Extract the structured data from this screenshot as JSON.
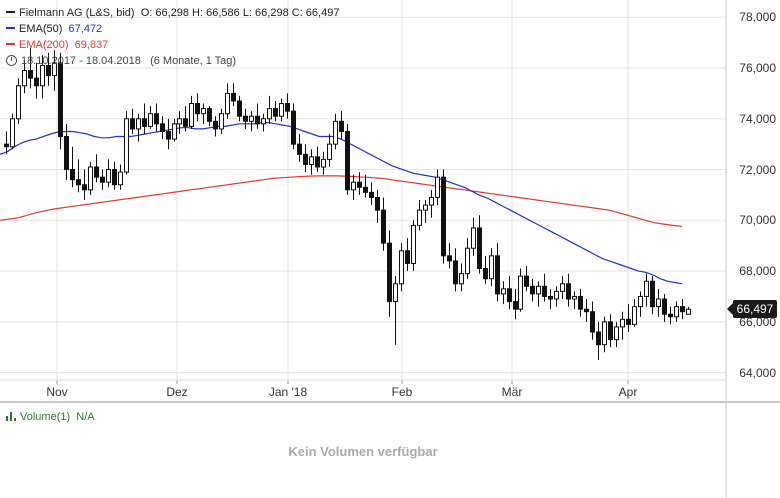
{
  "legend": {
    "title": "Fielmann AG (L&S, bid)",
    "ohlc": "O: 66,298  H: 66,586  L: 66,298  C: 66,497",
    "ema50_label": "EMA(50)",
    "ema50_value": "67,472",
    "ema200_label": "EMA(200)",
    "ema200_value": "69,837",
    "range": "18.10.2017 - 18.04.2018",
    "period": "(6 Monate, 1 Tag)"
  },
  "last_price_label": "66,497",
  "volume": {
    "label": "Volume(1)",
    "value": "N/A",
    "empty_message": "Kein Volumen verfügbar"
  },
  "colors": {
    "ema50": "#2233cc",
    "ema200": "#e23b2e",
    "candle": "#111111",
    "grid": "#e3e3e3",
    "volume": "#2a7a2a"
  },
  "chart_data": {
    "type": "candlestick",
    "y_ticks": [
      "64,000",
      "66,000",
      "68,000",
      "70,000",
      "72,000",
      "74,000",
      "76,000",
      "78,000"
    ],
    "y_tick_values": [
      64,
      66,
      68,
      70,
      72,
      74,
      76,
      78
    ],
    "x_ticks": [
      "Nov",
      "Dez",
      "Jan '18",
      "Feb",
      "Mär",
      "Apr"
    ],
    "ylim": [
      63.0,
      78.6
    ],
    "grid": true,
    "candles_ohlc": [
      [
        73.0,
        73.5,
        72.6,
        72.9
      ],
      [
        72.9,
        74.2,
        72.8,
        74.0
      ],
      [
        74.0,
        75.6,
        73.8,
        75.3
      ],
      [
        75.3,
        76.3,
        75.0,
        75.9
      ],
      [
        75.9,
        76.8,
        75.2,
        75.6
      ],
      [
        75.6,
        76.2,
        74.8,
        75.3
      ],
      [
        75.3,
        76.5,
        74.8,
        76.1
      ],
      [
        76.1,
        76.6,
        75.3,
        75.7
      ],
      [
        75.7,
        76.7,
        75.1,
        76.2
      ],
      [
        76.2,
        76.6,
        72.8,
        73.3
      ],
      [
        73.3,
        73.8,
        71.6,
        72.0
      ],
      [
        72.0,
        72.9,
        71.3,
        71.6
      ],
      [
        71.6,
        72.4,
        71.1,
        71.4
      ],
      [
        71.4,
        72.0,
        70.8,
        71.2
      ],
      [
        71.2,
        72.3,
        71.0,
        72.1
      ],
      [
        72.1,
        72.6,
        71.5,
        71.7
      ],
      [
        71.7,
        72.0,
        71.2,
        71.5
      ],
      [
        71.5,
        72.4,
        71.3,
        72.0
      ],
      [
        72.0,
        72.3,
        71.2,
        71.4
      ],
      [
        71.4,
        72.2,
        71.2,
        71.9
      ],
      [
        71.9,
        74.3,
        71.8,
        74.0
      ],
      [
        74.0,
        74.4,
        73.4,
        73.6
      ],
      [
        73.6,
        74.2,
        73.1,
        74.0
      ],
      [
        74.0,
        74.6,
        73.4,
        73.7
      ],
      [
        73.7,
        74.5,
        73.6,
        74.2
      ],
      [
        74.2,
        74.6,
        73.5,
        73.8
      ],
      [
        73.8,
        74.1,
        73.2,
        73.5
      ],
      [
        73.5,
        74.0,
        72.8,
        73.2
      ],
      [
        73.2,
        74.0,
        73.1,
        73.8
      ],
      [
        73.8,
        74.3,
        73.4,
        74.0
      ],
      [
        74.0,
        74.5,
        73.5,
        73.7
      ],
      [
        73.7,
        74.9,
        73.6,
        74.6
      ],
      [
        74.6,
        75.0,
        73.9,
        74.2
      ],
      [
        74.2,
        74.6,
        73.8,
        74.4
      ],
      [
        74.4,
        74.5,
        73.7,
        73.9
      ],
      [
        73.9,
        74.1,
        73.3,
        73.6
      ],
      [
        73.6,
        74.4,
        73.4,
        74.2
      ],
      [
        74.2,
        75.4,
        74.0,
        75.0
      ],
      [
        75.0,
        75.4,
        74.5,
        74.7
      ],
      [
        74.7,
        74.9,
        73.9,
        74.1
      ],
      [
        74.1,
        74.4,
        73.6,
        73.9
      ],
      [
        73.9,
        74.3,
        73.5,
        74.1
      ],
      [
        74.1,
        74.6,
        73.6,
        73.8
      ],
      [
        73.8,
        74.2,
        73.5,
        74.0
      ],
      [
        74.0,
        74.9,
        73.8,
        74.4
      ],
      [
        74.4,
        74.7,
        73.9,
        74.1
      ],
      [
        74.1,
        74.8,
        73.9,
        74.6
      ],
      [
        74.6,
        75.0,
        74.0,
        74.3
      ],
      [
        74.3,
        74.6,
        72.8,
        73.0
      ],
      [
        73.0,
        73.4,
        72.3,
        72.6
      ],
      [
        72.6,
        73.0,
        71.9,
        72.2
      ],
      [
        72.2,
        72.8,
        71.8,
        72.5
      ],
      [
        72.5,
        72.9,
        71.9,
        72.1
      ],
      [
        72.1,
        72.7,
        71.8,
        72.4
      ],
      [
        72.4,
        73.4,
        72.1,
        73.0
      ],
      [
        73.0,
        74.2,
        72.8,
        73.9
      ],
      [
        73.9,
        74.3,
        73.2,
        73.5
      ],
      [
        73.5,
        73.8,
        71.0,
        71.2
      ],
      [
        71.2,
        71.8,
        70.8,
        71.5
      ],
      [
        71.5,
        71.9,
        71.0,
        71.3
      ],
      [
        71.3,
        71.8,
        70.9,
        71.1
      ],
      [
        71.1,
        71.5,
        70.6,
        70.9
      ],
      [
        70.9,
        71.2,
        69.9,
        70.4
      ],
      [
        70.4,
        70.9,
        68.8,
        69.1
      ],
      [
        69.1,
        69.6,
        66.2,
        66.8
      ],
      [
        66.8,
        67.8,
        65.1,
        67.5
      ],
      [
        67.5,
        69.1,
        67.2,
        68.8
      ],
      [
        68.8,
        69.3,
        68.0,
        68.3
      ],
      [
        68.3,
        70.0,
        68.0,
        69.8
      ],
      [
        69.8,
        70.8,
        69.6,
        70.4
      ],
      [
        70.4,
        70.8,
        69.9,
        70.6
      ],
      [
        70.6,
        71.2,
        70.1,
        70.9
      ],
      [
        70.9,
        72.0,
        70.6,
        71.7
      ],
      [
        71.7,
        72.0,
        68.3,
        68.6
      ],
      [
        68.6,
        69.1,
        68.1,
        68.4
      ],
      [
        68.4,
        68.9,
        67.2,
        67.5
      ],
      [
        67.5,
        68.3,
        67.2,
        67.9
      ],
      [
        67.9,
        69.3,
        67.7,
        68.9
      ],
      [
        68.9,
        70.1,
        68.6,
        69.7
      ],
      [
        69.7,
        70.2,
        67.9,
        68.1
      ],
      [
        68.1,
        68.6,
        67.5,
        67.7
      ],
      [
        67.7,
        68.9,
        67.4,
        68.6
      ],
      [
        68.6,
        69.1,
        66.8,
        67.1
      ],
      [
        67.1,
        67.6,
        66.7,
        67.3
      ],
      [
        67.3,
        67.8,
        66.5,
        66.8
      ],
      [
        66.8,
        67.3,
        66.1,
        66.5
      ],
      [
        66.5,
        68.1,
        66.4,
        67.8
      ],
      [
        67.8,
        68.2,
        67.2,
        67.4
      ],
      [
        67.4,
        67.7,
        66.8,
        67.1
      ],
      [
        67.1,
        67.6,
        66.6,
        67.4
      ],
      [
        67.4,
        67.9,
        66.8,
        67.0
      ],
      [
        67.0,
        67.3,
        66.5,
        66.9
      ],
      [
        66.9,
        67.4,
        66.6,
        67.2
      ],
      [
        67.2,
        67.8,
        66.9,
        67.5
      ],
      [
        67.5,
        67.9,
        66.6,
        66.9
      ],
      [
        66.9,
        67.2,
        66.5,
        67.0
      ],
      [
        67.0,
        67.3,
        66.2,
        66.5
      ],
      [
        66.5,
        66.9,
        66.0,
        66.4
      ],
      [
        66.4,
        66.8,
        65.3,
        65.6
      ],
      [
        65.6,
        66.0,
        64.5,
        65.1
      ],
      [
        65.1,
        66.2,
        64.8,
        66.0
      ],
      [
        66.0,
        66.3,
        65.0,
        65.3
      ],
      [
        65.3,
        66.0,
        65.0,
        65.8
      ],
      [
        65.8,
        66.4,
        65.3,
        66.1
      ],
      [
        66.1,
        66.7,
        65.6,
        65.9
      ],
      [
        65.9,
        66.9,
        65.8,
        66.6
      ],
      [
        66.6,
        67.2,
        66.2,
        67.0
      ],
      [
        67.0,
        67.9,
        66.6,
        67.6
      ],
      [
        67.6,
        67.8,
        66.3,
        66.6
      ],
      [
        66.6,
        67.3,
        66.2,
        66.9
      ],
      [
        66.9,
        67.1,
        66.0,
        66.3
      ],
      [
        66.3,
        66.6,
        65.9,
        66.2
      ],
      [
        66.2,
        66.8,
        66.0,
        66.6
      ],
      [
        66.6,
        66.9,
        66.1,
        66.4
      ],
      [
        66.298,
        66.586,
        66.298,
        66.497
      ]
    ],
    "ema50": [
      72.6,
      72.7,
      72.9,
      73.05,
      73.15,
      73.2,
      73.3,
      73.4,
      73.48,
      73.5,
      73.5,
      73.45,
      73.4,
      73.3,
      73.25,
      73.25,
      73.3,
      73.3,
      73.3,
      73.35,
      73.4,
      73.45,
      73.5,
      73.55,
      73.6,
      73.65,
      73.65,
      73.6,
      73.6,
      73.65,
      73.7,
      73.7,
      73.75,
      73.8,
      73.8,
      73.8,
      73.85,
      73.85,
      73.8,
      73.75,
      73.7,
      73.6,
      73.5,
      73.4,
      73.3,
      73.3,
      73.3,
      73.2,
      73.05,
      72.9,
      72.75,
      72.6,
      72.45,
      72.3,
      72.15,
      72.05,
      71.95,
      71.85,
      71.8,
      71.75,
      71.7,
      71.6,
      71.5,
      71.4,
      71.3,
      71.15,
      71.0,
      70.9,
      70.75,
      70.6,
      70.45,
      70.3,
      70.15,
      70.0,
      69.85,
      69.7,
      69.55,
      69.4,
      69.25,
      69.1,
      68.95,
      68.8,
      68.65,
      68.5,
      68.4,
      68.3,
      68.2,
      68.1,
      68.0,
      67.95,
      67.85,
      67.7,
      67.6,
      67.55,
      67.5
    ],
    "ema200": [
      70.0,
      70.05,
      70.1,
      70.2,
      70.3,
      70.38,
      70.45,
      70.5,
      70.55,
      70.6,
      70.65,
      70.7,
      70.75,
      70.8,
      70.85,
      70.9,
      70.95,
      71.0,
      71.05,
      71.1,
      71.15,
      71.2,
      71.25,
      71.3,
      71.35,
      71.4,
      71.45,
      71.5,
      71.55,
      71.6,
      71.65,
      71.68,
      71.7,
      71.72,
      71.74,
      71.75,
      71.75,
      71.75,
      71.74,
      71.72,
      71.7,
      71.68,
      71.65,
      71.6,
      71.55,
      71.5,
      71.45,
      71.4,
      71.35,
      71.3,
      71.25,
      71.2,
      71.15,
      71.1,
      71.05,
      71.0,
      70.95,
      70.9,
      70.85,
      70.8,
      70.75,
      70.7,
      70.65,
      70.6,
      70.55,
      70.5,
      70.45,
      70.4,
      70.3,
      70.2,
      70.1,
      70.0,
      69.9,
      69.85,
      69.8,
      69.76
    ]
  }
}
